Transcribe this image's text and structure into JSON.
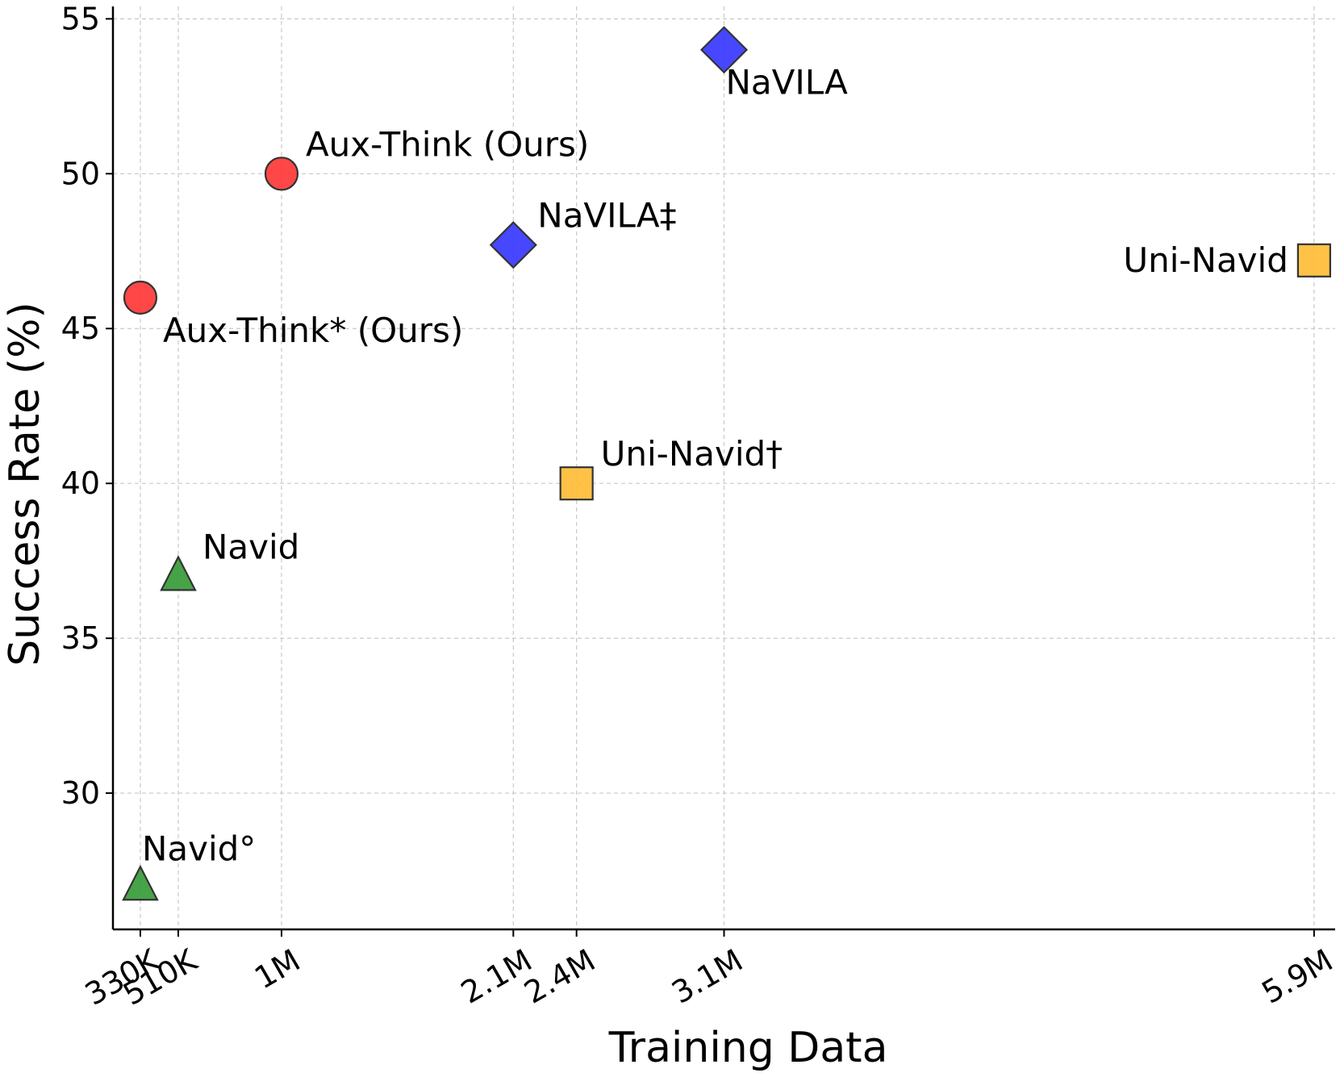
{
  "chart_data": {
    "type": "scatter",
    "xlabel": "Training Data",
    "ylabel": "Success Rate (%)",
    "xlim": [
      200000,
      6000000
    ],
    "ylim": [
      25.6,
      55.4
    ],
    "grid": true,
    "x_ticks": [
      {
        "value": 330000,
        "label": "330K"
      },
      {
        "value": 510000,
        "label": "510K"
      },
      {
        "value": 1000000,
        "label": "1M"
      },
      {
        "value": 2100000,
        "label": "2.1M"
      },
      {
        "value": 2400000,
        "label": "2.4M"
      },
      {
        "value": 3100000,
        "label": "3.1M"
      },
      {
        "value": 5900000,
        "label": "5.9M"
      }
    ],
    "y_ticks": [
      {
        "value": 30,
        "label": "30"
      },
      {
        "value": 35,
        "label": "35"
      },
      {
        "value": 40,
        "label": "40"
      },
      {
        "value": 45,
        "label": "45"
      },
      {
        "value": 50,
        "label": "50"
      },
      {
        "value": 55,
        "label": "55"
      }
    ],
    "points": [
      {
        "label": "Aux-Think (Ours)",
        "x": 1000000,
        "y": 50.0,
        "marker": "circle",
        "color": "#ff3333",
        "label_pos": "upper-right"
      },
      {
        "label": "Aux-Think* (Ours)",
        "x": 330000,
        "y": 46.0,
        "marker": "circle",
        "color": "#ff3333",
        "label_pos": "lower-right"
      },
      {
        "label": "NaVILA",
        "x": 3100000,
        "y": 54.0,
        "marker": "diamond",
        "color": "#3333ff",
        "label_pos": "lower-right"
      },
      {
        "label": "NaVILA‡",
        "x": 2100000,
        "y": 47.7,
        "marker": "diamond",
        "color": "#3333ff",
        "label_pos": "upper-right"
      },
      {
        "label": "Uni-Navid",
        "x": 5900000,
        "y": 47.2,
        "marker": "square",
        "color": "#ffbb33",
        "label_pos": "left"
      },
      {
        "label": "Uni-Navid†",
        "x": 2400000,
        "y": 40.0,
        "marker": "square",
        "color": "#ffbb33",
        "label_pos": "upper-right"
      },
      {
        "label": "Navid",
        "x": 510000,
        "y": 37.0,
        "marker": "triangle",
        "color": "#339933",
        "label_pos": "upper-right"
      },
      {
        "label": "Navid°",
        "x": 330000,
        "y": 27.0,
        "marker": "triangle",
        "color": "#339933",
        "label_pos": "above"
      }
    ]
  }
}
